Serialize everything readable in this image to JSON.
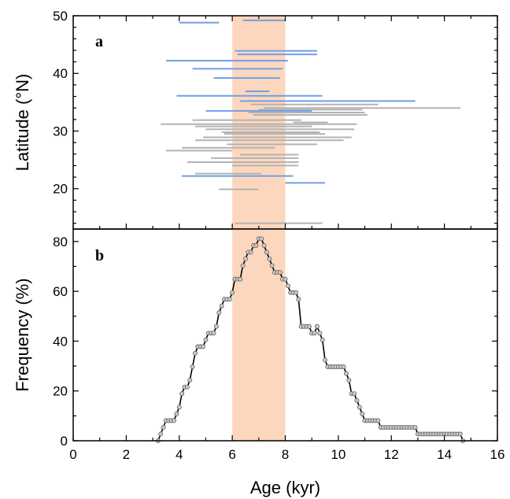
{
  "chart_data": [
    {
      "panel_label": "a",
      "type": "range",
      "ylabel": "Latitude (°N)",
      "xlim": [
        0,
        16
      ],
      "ylim": [
        13,
        50
      ],
      "yticks": [
        20,
        30,
        40,
        50
      ],
      "highlight_band": [
        6,
        8
      ],
      "highlight_color": "#fdd7bd",
      "series": [
        {
          "color": "#6f9fe8",
          "ranges": [
            {
              "lat": 48.8,
              "start": 4.0,
              "end": 5.5
            },
            {
              "lat": 49.2,
              "start": 6.4,
              "end": 8.0
            },
            {
              "lat": 43.9,
              "start": 6.1,
              "end": 9.2
            },
            {
              "lat": 43.3,
              "start": 6.2,
              "end": 9.2
            },
            {
              "lat": 42.2,
              "start": 3.5,
              "end": 8.1
            },
            {
              "lat": 40.8,
              "start": 4.5,
              "end": 7.9
            },
            {
              "lat": 39.2,
              "start": 5.3,
              "end": 7.8
            },
            {
              "lat": 36.9,
              "start": 6.5,
              "end": 7.4
            },
            {
              "lat": 36.1,
              "start": 3.9,
              "end": 9.4
            },
            {
              "lat": 35.2,
              "start": 6.3,
              "end": 12.9
            },
            {
              "lat": 33.5,
              "start": 5.0,
              "end": 9.0
            },
            {
              "lat": 22.2,
              "start": 4.1,
              "end": 8.3
            },
            {
              "lat": 21.0,
              "start": 8.0,
              "end": 9.5
            }
          ]
        },
        {
          "color": "#b3b3b3",
          "ranges": [
            {
              "lat": 34.6,
              "start": 6.7,
              "end": 11.5
            },
            {
              "lat": 34.0,
              "start": 7.2,
              "end": 14.6
            },
            {
              "lat": 33.7,
              "start": 7.0,
              "end": 10.9
            },
            {
              "lat": 33.2,
              "start": 6.6,
              "end": 11.0
            },
            {
              "lat": 32.8,
              "start": 6.8,
              "end": 11.1
            },
            {
              "lat": 31.9,
              "start": 4.5,
              "end": 8.6
            },
            {
              "lat": 31.5,
              "start": 8.3,
              "end": 9.6
            },
            {
              "lat": 31.2,
              "start": 3.3,
              "end": 10.7
            },
            {
              "lat": 30.8,
              "start": 4.6,
              "end": 9.0
            },
            {
              "lat": 30.3,
              "start": 5.0,
              "end": 10.6
            },
            {
              "lat": 29.8,
              "start": 5.6,
              "end": 9.3
            },
            {
              "lat": 29.5,
              "start": 5.7,
              "end": 9.5
            },
            {
              "lat": 28.9,
              "start": 4.9,
              "end": 10.5
            },
            {
              "lat": 28.4,
              "start": 4.6,
              "end": 10.2
            },
            {
              "lat": 27.7,
              "start": 5.8,
              "end": 9.2
            },
            {
              "lat": 27.1,
              "start": 4.1,
              "end": 7.6
            },
            {
              "lat": 26.6,
              "start": 3.5,
              "end": 6.0
            },
            {
              "lat": 25.9,
              "start": 6.3,
              "end": 8.5
            },
            {
              "lat": 25.3,
              "start": 5.2,
              "end": 8.5
            },
            {
              "lat": 24.6,
              "start": 4.3,
              "end": 8.5
            },
            {
              "lat": 24.0,
              "start": 6.0,
              "end": 8.5
            },
            {
              "lat": 22.6,
              "start": 4.6,
              "end": 7.1
            },
            {
              "lat": 19.9,
              "start": 5.5,
              "end": 7.0
            },
            {
              "lat": 14.0,
              "start": 6.1,
              "end": 9.4
            }
          ]
        }
      ]
    },
    {
      "panel_label": "b",
      "type": "line",
      "xlabel": "Age (kyr)",
      "ylabel": "Frequency (%)",
      "xlim": [
        0,
        16
      ],
      "ylim": [
        0,
        85
      ],
      "xticks": [
        0,
        2,
        4,
        6,
        8,
        10,
        12,
        14,
        16
      ],
      "yticks": [
        0,
        20,
        40,
        60,
        80
      ],
      "highlight_band": [
        6,
        8
      ],
      "highlight_color": "#fdd7bd",
      "line_color": "#000000",
      "marker_color": "#c9c9c9",
      "points": [
        [
          3.2,
          0
        ],
        [
          3.3,
          2.7
        ],
        [
          3.4,
          5.4
        ],
        [
          3.5,
          8.1
        ],
        [
          3.6,
          8.1
        ],
        [
          3.7,
          8.1
        ],
        [
          3.8,
          8.1
        ],
        [
          3.9,
          10.8
        ],
        [
          4.0,
          13.5
        ],
        [
          4.1,
          18.9
        ],
        [
          4.2,
          21.6
        ],
        [
          4.3,
          21.6
        ],
        [
          4.4,
          24.3
        ],
        [
          4.5,
          29.7
        ],
        [
          4.6,
          35.1
        ],
        [
          4.7,
          37.8
        ],
        [
          4.8,
          37.8
        ],
        [
          4.9,
          37.8
        ],
        [
          5.0,
          40.5
        ],
        [
          5.1,
          43.2
        ],
        [
          5.2,
          43.2
        ],
        [
          5.3,
          43.2
        ],
        [
          5.4,
          45.9
        ],
        [
          5.5,
          51.4
        ],
        [
          5.6,
          54.1
        ],
        [
          5.7,
          56.8
        ],
        [
          5.8,
          56.8
        ],
        [
          5.9,
          56.8
        ],
        [
          6.0,
          59.5
        ],
        [
          6.1,
          64.9
        ],
        [
          6.2,
          64.9
        ],
        [
          6.3,
          64.9
        ],
        [
          6.4,
          70.3
        ],
        [
          6.5,
          73.0
        ],
        [
          6.6,
          75.7
        ],
        [
          6.7,
          75.7
        ],
        [
          6.8,
          78.4
        ],
        [
          6.9,
          78.4
        ],
        [
          7.0,
          81.1
        ],
        [
          7.1,
          81.1
        ],
        [
          7.2,
          78.4
        ],
        [
          7.3,
          75.7
        ],
        [
          7.4,
          73.0
        ],
        [
          7.5,
          70.3
        ],
        [
          7.6,
          67.6
        ],
        [
          7.7,
          67.6
        ],
        [
          7.8,
          67.6
        ],
        [
          7.9,
          64.9
        ],
        [
          8.0,
          64.9
        ],
        [
          8.1,
          62.2
        ],
        [
          8.2,
          59.5
        ],
        [
          8.3,
          59.5
        ],
        [
          8.4,
          59.5
        ],
        [
          8.5,
          56.8
        ],
        [
          8.6,
          45.9
        ],
        [
          8.7,
          45.9
        ],
        [
          8.8,
          45.9
        ],
        [
          8.9,
          45.9
        ],
        [
          9.0,
          43.2
        ],
        [
          9.1,
          43.2
        ],
        [
          9.2,
          45.9
        ],
        [
          9.3,
          43.2
        ],
        [
          9.4,
          40.5
        ],
        [
          9.5,
          32.4
        ],
        [
          9.6,
          29.7
        ],
        [
          9.7,
          29.7
        ],
        [
          9.8,
          29.7
        ],
        [
          9.9,
          29.7
        ],
        [
          10.0,
          29.7
        ],
        [
          10.1,
          29.7
        ],
        [
          10.2,
          29.7
        ],
        [
          10.3,
          27.0
        ],
        [
          10.4,
          24.3
        ],
        [
          10.5,
          18.9
        ],
        [
          10.6,
          18.9
        ],
        [
          10.7,
          16.2
        ],
        [
          10.8,
          13.5
        ],
        [
          10.9,
          10.8
        ],
        [
          11.0,
          8.1
        ],
        [
          11.1,
          8.1
        ],
        [
          11.2,
          8.1
        ],
        [
          11.3,
          8.1
        ],
        [
          11.4,
          8.1
        ],
        [
          11.5,
          8.1
        ],
        [
          11.6,
          5.4
        ],
        [
          11.7,
          5.4
        ],
        [
          11.8,
          5.4
        ],
        [
          11.9,
          5.4
        ],
        [
          12.0,
          5.4
        ],
        [
          12.1,
          5.4
        ],
        [
          12.2,
          5.4
        ],
        [
          12.3,
          5.4
        ],
        [
          12.4,
          5.4
        ],
        [
          12.5,
          5.4
        ],
        [
          12.6,
          5.4
        ],
        [
          12.7,
          5.4
        ],
        [
          12.8,
          5.4
        ],
        [
          12.9,
          5.4
        ],
        [
          13.0,
          2.7
        ],
        [
          13.1,
          2.7
        ],
        [
          13.2,
          2.7
        ],
        [
          13.3,
          2.7
        ],
        [
          13.4,
          2.7
        ],
        [
          13.5,
          2.7
        ],
        [
          13.6,
          2.7
        ],
        [
          13.7,
          2.7
        ],
        [
          13.8,
          2.7
        ],
        [
          13.9,
          2.7
        ],
        [
          14.0,
          2.7
        ],
        [
          14.1,
          2.7
        ],
        [
          14.2,
          2.7
        ],
        [
          14.3,
          2.7
        ],
        [
          14.4,
          2.7
        ],
        [
          14.5,
          2.7
        ],
        [
          14.6,
          2.7
        ],
        [
          14.7,
          0
        ]
      ]
    }
  ]
}
